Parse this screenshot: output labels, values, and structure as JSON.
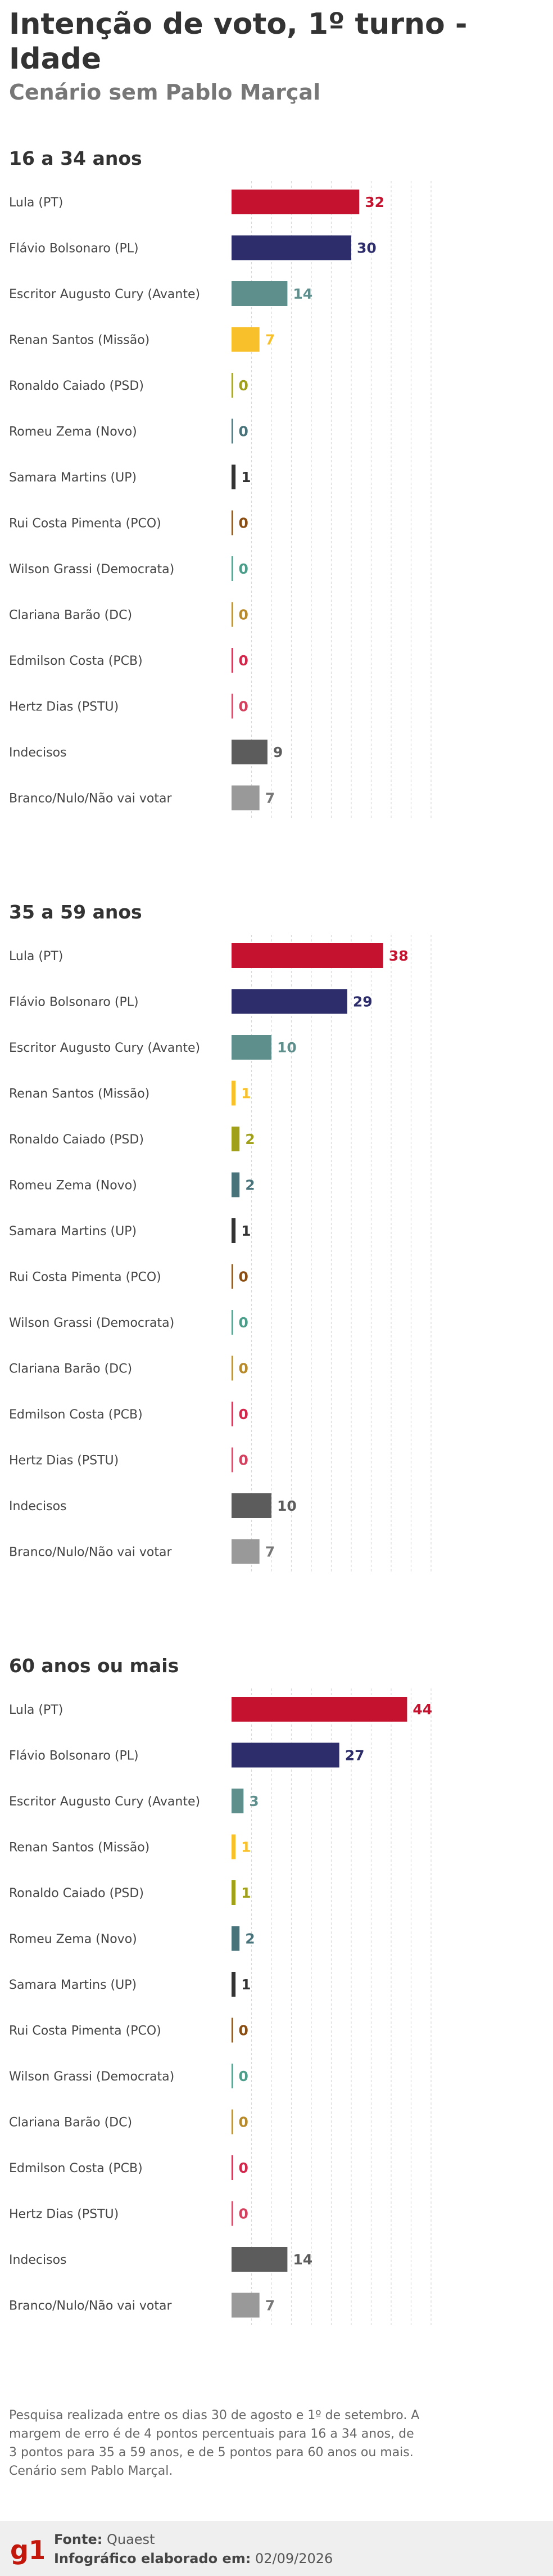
{
  "header": {
    "title": "Intenção de voto, 1º turno - Idade",
    "subtitle": "Cenário sem Pablo Marçal"
  },
  "colors": {
    "Lula (PT)": "#c4122f",
    "Flávio Bolsonaro (PL)": "#2e2d6b",
    "Escritor Augusto Cury (Avante)": "#5e8f8c",
    "Renan Santos (Missão)": "#f8c12c",
    "Ronaldo Caiado (PSD)": "#a0a01a",
    "Romeu Zema (Novo)": "#48737a",
    "Samara Martins (UP)": "#333333",
    "Rui Costa Pimenta (PCO)": "#8a4d12",
    "Wilson Grassi (Democrata)": "#4a9e8a",
    "Clariana Barão (DC)": "#b88a2a",
    "Edmilson Costa (PCB)": "#d4264a",
    "Hertz Dias (PSTU)": "#d4405e",
    "Indecisos": "#5c5c5c",
    "Branco/Nulo/Não vai votar": "#999999"
  },
  "chart_data": [
    {
      "type": "bar",
      "title": "16 a 34 anos",
      "categories": [
        "Lula (PT)",
        "Flávio Bolsonaro (PL)",
        "Escritor Augusto Cury (Avante)",
        "Renan Santos (Missão)",
        "Ronaldo Caiado (PSD)",
        "Romeu Zema (Novo)",
        "Samara Martins (UP)",
        "Rui Costa Pimenta (PCO)",
        "Wilson Grassi (Democrata)",
        "Clariana Barão (DC)",
        "Edmilson Costa (PCB)",
        "Hertz Dias (PSTU)",
        "Indecisos",
        "Branco/Nulo/Não vai votar"
      ],
      "values": [
        32,
        30,
        14,
        7,
        0,
        0,
        1,
        0,
        0,
        0,
        0,
        0,
        9,
        7
      ]
    },
    {
      "type": "bar",
      "title": "35 a 59 anos",
      "categories": [
        "Lula (PT)",
        "Flávio Bolsonaro (PL)",
        "Escritor Augusto Cury (Avante)",
        "Renan Santos (Missão)",
        "Ronaldo Caiado (PSD)",
        "Romeu Zema (Novo)",
        "Samara Martins (UP)",
        "Rui Costa Pimenta (PCO)",
        "Wilson Grassi (Democrata)",
        "Clariana Barão (DC)",
        "Edmilson Costa (PCB)",
        "Hertz Dias (PSTU)",
        "Indecisos",
        "Branco/Nulo/Não vai votar"
      ],
      "values": [
        38,
        29,
        10,
        1,
        2,
        2,
        1,
        0,
        0,
        0,
        0,
        0,
        10,
        7
      ]
    },
    {
      "type": "bar",
      "title": "60 anos ou mais",
      "categories": [
        "Lula (PT)",
        "Flávio Bolsonaro (PL)",
        "Escritor Augusto Cury (Avante)",
        "Renan Santos (Missão)",
        "Ronaldo Caiado (PSD)",
        "Romeu Zema (Novo)",
        "Samara Martins (UP)",
        "Rui Costa Pimenta (PCO)",
        "Wilson Grassi (Democrata)",
        "Clariana Barão (DC)",
        "Edmilson Costa (PCB)",
        "Hertz Dias (PSTU)",
        "Indecisos",
        "Branco/Nulo/Não vai votar"
      ],
      "values": [
        44,
        27,
        3,
        1,
        1,
        2,
        1,
        0,
        0,
        0,
        0,
        0,
        14,
        7
      ]
    }
  ],
  "footnote": "Pesquisa realizada entre os dias 30 de agosto e 1º de setembro. A margem de erro é de 4 pontos percentuais para 16 a 34 anos, de 3 pontos para 35 a 59 anos, e de 5 pontos para 60 anos ou mais. Cenário sem Pablo Marçal.",
  "footer": {
    "logo_text": "g1",
    "source_label": "Fonte:",
    "source_value": "Quaest",
    "made_label": "Infográfico elaborado em:",
    "made_value": "02/09/2026"
  }
}
